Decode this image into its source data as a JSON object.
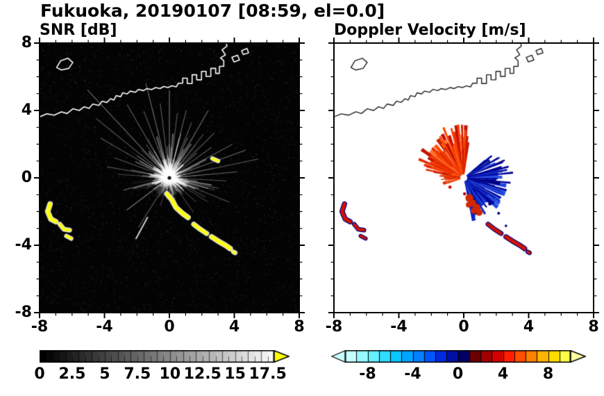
{
  "header": {
    "title": "Fukuoka, 20190107 [08:59, el=0.0]"
  },
  "panels": [
    {
      "id": "snr",
      "title": "SNR [dB]",
      "xticks": {
        "values": [
          -8,
          -4,
          0,
          4,
          8
        ],
        "labels": [
          "-8",
          "-4",
          "0",
          "4",
          "8"
        ]
      },
      "yticks": {
        "values": [
          8,
          4,
          0,
          -4,
          -8
        ],
        "labels": [
          "8",
          "4",
          "0",
          "-4",
          "-8"
        ]
      },
      "colorbar": {
        "min": 0,
        "max": 18,
        "tick_values": [
          0,
          2.5,
          5,
          7.5,
          10,
          12.5,
          15,
          17.5
        ],
        "tick_labels": [
          "0",
          "2.5",
          "5",
          "7.5",
          "10",
          "12.5",
          "15",
          "17.5"
        ],
        "type": "grayscale",
        "start_color": "#000000",
        "end_color": "#ffffff",
        "over_color": "#ffff00"
      }
    },
    {
      "id": "velocity",
      "title": "Doppler Velocity [m/s]",
      "xticks": {
        "values": [
          -8,
          -4,
          0,
          4,
          8
        ],
        "labels": [
          "-8",
          "-4",
          "0",
          "4",
          "8"
        ]
      },
      "yticks": {
        "values": [
          8,
          4,
          0,
          -4,
          -8
        ],
        "labels": []
      },
      "colorbar": {
        "min": -10,
        "max": 10,
        "tick_values": [
          -8,
          -4,
          0,
          4,
          8
        ],
        "tick_labels": [
          "-8",
          "-4",
          "0",
          "4",
          "8"
        ],
        "type": "discrete",
        "cell_colors": [
          "#c8ffff",
          "#96faff",
          "#64f0ff",
          "#32dcff",
          "#0ac8ff",
          "#00a5ff",
          "#0082ff",
          "#0055ff",
          "#0028dc",
          "#000fa5",
          "#000064",
          "#690000",
          "#a00000",
          "#d20000",
          "#ff1e00",
          "#ff5000",
          "#ff8200",
          "#ffb400",
          "#ffdc00",
          "#ffff46"
        ],
        "under_color": "#c8ffff",
        "over_color": "#ffffa0"
      }
    }
  ],
  "map_overlay": {
    "coastline_color_snr": "#ffffff",
    "coastline_color_velocity": "#1e1e1e",
    "island": [
      [
        -6.95,
        6.55
      ],
      [
        -6.7,
        6.95
      ],
      [
        -6.25,
        7.1
      ],
      [
        -5.95,
        6.85
      ],
      [
        -6.2,
        6.5
      ],
      [
        -6.65,
        6.4
      ]
    ],
    "coastline": [
      [
        -8,
        3.62
      ],
      [
        -7.55,
        3.8
      ],
      [
        -7.1,
        3.72
      ],
      [
        -6.65,
        3.92
      ],
      [
        -6.3,
        3.82
      ],
      [
        -5.95,
        4.1
      ],
      [
        -5.55,
        4.0
      ],
      [
        -5.25,
        4.22
      ],
      [
        -4.95,
        4.12
      ],
      [
        -4.72,
        4.38
      ],
      [
        -4.35,
        4.3
      ],
      [
        -4.15,
        4.55
      ],
      [
        -3.85,
        4.48
      ],
      [
        -3.62,
        4.7
      ],
      [
        -3.42,
        4.62
      ],
      [
        -3.28,
        4.88
      ],
      [
        -3.0,
        4.82
      ],
      [
        -2.88,
        5.05
      ],
      [
        -2.6,
        4.98
      ],
      [
        -2.42,
        5.15
      ],
      [
        -2.1,
        5.08
      ],
      [
        -1.9,
        5.25
      ],
      [
        -1.6,
        5.18
      ],
      [
        -1.38,
        5.3
      ],
      [
        -1.1,
        5.24
      ],
      [
        -0.85,
        5.36
      ],
      [
        -0.58,
        5.3
      ],
      [
        -0.35,
        5.42
      ],
      [
        -0.08,
        5.36
      ],
      [
        0.15,
        5.46
      ],
      [
        0.42,
        5.4
      ],
      [
        0.55,
        5.62
      ],
      [
        0.82,
        5.62
      ],
      [
        0.82,
        5.92
      ],
      [
        1.1,
        5.92
      ],
      [
        1.1,
        5.6
      ],
      [
        1.4,
        5.6
      ],
      [
        1.4,
        6.12
      ],
      [
        1.68,
        6.12
      ],
      [
        1.68,
        5.82
      ],
      [
        1.98,
        5.82
      ],
      [
        1.98,
        6.32
      ],
      [
        2.26,
        6.32
      ],
      [
        2.26,
        6.02
      ],
      [
        2.55,
        6.02
      ],
      [
        2.55,
        6.5
      ],
      [
        2.85,
        6.5
      ],
      [
        2.85,
        6.2
      ],
      [
        3.08,
        6.2
      ],
      [
        3.08,
        6.62
      ],
      [
        3.35,
        6.62
      ],
      [
        3.35,
        6.95
      ],
      [
        3.15,
        7.12
      ],
      [
        3.45,
        7.3
      ],
      [
        3.25,
        7.6
      ],
      [
        3.55,
        7.82
      ],
      [
        3.5,
        8.0
      ]
    ],
    "port_islets": [
      [
        [
          3.85,
          7.15
        ],
        [
          4.2,
          7.28
        ],
        [
          4.32,
          7.0
        ],
        [
          3.98,
          6.88
        ]
      ],
      [
        [
          4.45,
          7.55
        ],
        [
          4.78,
          7.68
        ],
        [
          4.88,
          7.42
        ],
        [
          4.55,
          7.32
        ]
      ]
    ]
  },
  "echoes": {
    "chains": [
      [
        [
          -7.35,
          -1.55
        ],
        [
          -7.5,
          -2.0
        ],
        [
          -7.3,
          -2.45
        ],
        [
          -7.0,
          -2.6
        ]
      ],
      [
        [
          -6.75,
          -2.75
        ],
        [
          -6.5,
          -3.05
        ],
        [
          -6.15,
          -3.1
        ]
      ],
      [
        [
          -6.35,
          -3.45
        ],
        [
          -6.05,
          -3.6
        ]
      ],
      [
        [
          -0.15,
          -0.95
        ],
        [
          0.15,
          -1.3
        ],
        [
          0.4,
          -1.75
        ],
        [
          0.8,
          -2.1
        ],
        [
          1.15,
          -2.35
        ]
      ],
      [
        [
          1.5,
          -2.75
        ],
        [
          1.9,
          -3.05
        ],
        [
          2.3,
          -3.3
        ]
      ],
      [
        [
          2.6,
          -3.5
        ],
        [
          3.0,
          -3.75
        ],
        [
          3.45,
          -4.0
        ],
        [
          3.75,
          -4.2
        ]
      ],
      [
        [
          3.95,
          -4.4
        ],
        [
          4.05,
          -4.45
        ]
      ],
      [
        [
          2.65,
          1.15
        ],
        [
          3.0,
          1.0
        ]
      ]
    ],
    "widths": [
      5,
      4,
      3.5,
      5,
      4.5,
      5,
      4,
      3.5
    ]
  },
  "chart_data": [
    {
      "type": "heatmap",
      "variant": "ppi-radar-scan",
      "title": "SNR [dB]",
      "site": "Fukuoka",
      "time": "08:59",
      "elevation": 0.0,
      "xlim": [
        -8,
        8
      ],
      "ylim": [
        -8,
        8
      ],
      "xticks": [
        -8,
        -4,
        0,
        4,
        8
      ],
      "yticks": [
        -8,
        -4,
        0,
        4,
        8
      ],
      "colorbar_range": [
        0,
        18
      ],
      "colorbar_ticks": [
        0,
        2.5,
        5,
        7.5,
        10,
        12.5,
        15,
        17.5
      ],
      "background": "#030303",
      "radar_center": [
        0,
        0
      ],
      "features": {
        "seed": 7,
        "ray_count": 260,
        "core_ray_count": 170,
        "bright_sector_deg": [
          -42,
          205
        ],
        "center_dot_color": "#101010",
        "echo_color": "#ffff00",
        "long_rays": [
          [
            133,
            7.4,
            0.35
          ],
          [
            141,
            5.8,
            0.3
          ],
          [
            150,
            4.9,
            0.33
          ],
          [
            160,
            3.6,
            0.28
          ],
          [
            170,
            3.9,
            0.3
          ],
          [
            176,
            3.2,
            0.25
          ],
          [
            120,
            5.2,
            0.33
          ],
          [
            111,
            4.4,
            0.3
          ],
          [
            104,
            6.0,
            0.38
          ],
          [
            97,
            4.6,
            0.32
          ],
          [
            90,
            5.4,
            0.4
          ],
          [
            83,
            4.0,
            0.3
          ],
          [
            76,
            4.3,
            0.33
          ],
          [
            68,
            3.7,
            0.3
          ],
          [
            60,
            4.8,
            0.36
          ],
          [
            52,
            3.4,
            0.28
          ],
          [
            45,
            3.9,
            0.3
          ],
          [
            36,
            3.2,
            0.3
          ],
          [
            28,
            4.4,
            0.33
          ],
          [
            20,
            5.0,
            0.35
          ],
          [
            12,
            5.6,
            0.3
          ],
          [
            5,
            4.2,
            0.32
          ],
          [
            -3,
            3.5,
            0.28
          ],
          [
            -12,
            3.1,
            0.3
          ],
          [
            -22,
            4.0,
            0.26
          ],
          [
            -32,
            2.8,
            0.22
          ],
          [
            217,
            3.3,
            0.45
          ],
          [
            238,
            3.6,
            0.3
          ],
          [
            252,
            1.8,
            0.2
          ],
          [
            262,
            1.4,
            0.18
          ],
          [
            285,
            1.6,
            0.18
          ],
          [
            305,
            2.6,
            0.22
          ],
          [
            318,
            2.2,
            0.2
          ],
          [
            332,
            2.5,
            0.22
          ],
          [
            345,
            2.9,
            0.25
          ]
        ],
        "white_dashes": [
          [
            [
              -2.05,
              -3.6
            ],
            [
              -1.35,
              -2.35
            ]
          ]
        ]
      }
    },
    {
      "type": "heatmap",
      "variant": "ppi-radar-scan",
      "title": "Doppler Velocity [m/s]",
      "site": "Fukuoka",
      "time": "08:59",
      "elevation": 0.0,
      "xlim": [
        -8,
        8
      ],
      "ylim": [
        -8,
        8
      ],
      "xticks": [
        -8,
        -4,
        0,
        4,
        8
      ],
      "yticks": [
        -8,
        -4,
        0,
        4,
        8
      ],
      "colorbar_range": [
        -10,
        10
      ],
      "colorbar_ticks": [
        -8,
        -4,
        0,
        4,
        8
      ],
      "background": "#ffffff",
      "radar_center": [
        0,
        0
      ],
      "features": {
        "seed": 21,
        "fans": [
          {
            "name": "positive-away-north",
            "angle_deg": [
              82,
              170
            ],
            "length_range": [
              0.7,
              3.3
            ],
            "spokes": 150,
            "colors": [
              "#ff4600",
              "#e62a00",
              "#d21c00",
              "#ff5f0a",
              "#c31200",
              "#ff7332"
            ],
            "spikes": [
              [
                96,
                3.3
              ],
              [
                104,
                3.15
              ],
              [
                112,
                3.35
              ],
              [
                120,
                2.95
              ],
              [
                88,
                2.95
              ],
              [
                130,
                2.65
              ],
              [
                138,
                2.5
              ],
              [
                146,
                2.45
              ],
              [
                154,
                2.3
              ],
              [
                162,
                2.1
              ]
            ]
          },
          {
            "name": "negative-toward-east",
            "angle_deg": [
              -78,
              40
            ],
            "length_range": [
              0.4,
              2.8
            ],
            "spokes": 180,
            "colors": [
              "#000096",
              "#0a28c8",
              "#1e46e1",
              "#000073",
              "#2d55e6",
              "#0f1eb4"
            ],
            "spikes": [
              [
                6,
                3.05
              ],
              [
                14,
                2.85
              ],
              [
                -6,
                2.9
              ],
              [
                22,
                2.6
              ],
              [
                -16,
                2.75
              ],
              [
                30,
                2.45
              ],
              [
                -28,
                2.6
              ],
              [
                -40,
                2.45
              ],
              [
                -52,
                2.3
              ],
              [
                -64,
                2.1
              ],
              [
                38,
                2.2
              ]
            ]
          },
          {
            "name": "positive-west-lobe",
            "angle_deg": [
              168,
              200
            ],
            "length_range": [
              0.4,
              1.5
            ],
            "spokes": 40,
            "colors": [
              "#e63200",
              "#ff5a14",
              "#c81e00"
            ],
            "spikes": [
              [
                176,
                1.5
              ],
              [
                184,
                1.4
              ],
              [
                192,
                1.3
              ]
            ]
          }
        ],
        "south_patch": {
          "color": "#d22800",
          "points": [
            [
              0.35,
              -1.2
            ],
            [
              0.55,
              -1.5
            ],
            [
              0.8,
              -1.75
            ],
            [
              0.6,
              -1.95
            ],
            [
              0.95,
              -2.05
            ],
            [
              0.3,
              -1.6
            ]
          ]
        },
        "specks": [
          [
            1.6,
            -1.55,
            "#000082",
            2.2
          ],
          [
            2.15,
            -2.1,
            "#000082",
            2.0
          ],
          [
            2.6,
            -2.85,
            "#000082",
            1.8
          ],
          [
            0.05,
            -0.95,
            "#b40000",
            2.2
          ],
          [
            -0.85,
            -0.55,
            "#d21400",
            2.4
          ],
          [
            -1.2,
            -0.3,
            "#e63200",
            2.2
          ]
        ],
        "chain_indices": [
          0,
          1,
          2,
          4,
          5,
          6
        ],
        "echo_primary": "#d21400",
        "echo_fringe": "#000082"
      }
    }
  ]
}
